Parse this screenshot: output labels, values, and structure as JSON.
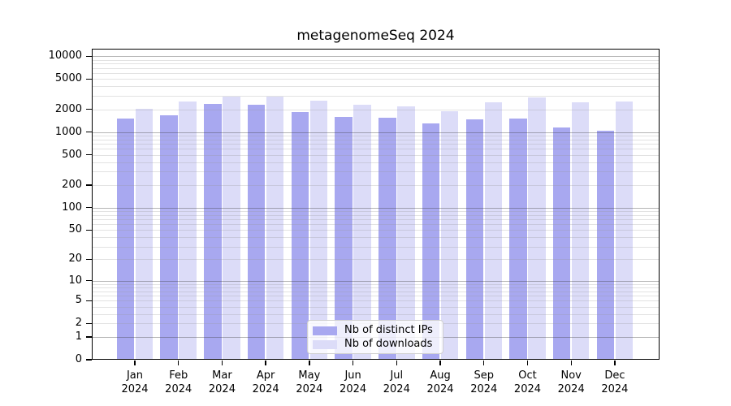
{
  "chart_data": {
    "type": "bar",
    "title": "metagenomeSeq 2024",
    "categories": [
      "Jan",
      "Feb",
      "Mar",
      "Apr",
      "May",
      "Jun",
      "Jul",
      "Aug",
      "Sep",
      "Oct",
      "Nov",
      "Dec"
    ],
    "category_year": "2024",
    "series": [
      {
        "name": "Nb of distinct IPs",
        "color": "#a8a8f0",
        "values": [
          1500,
          1670,
          2380,
          2280,
          1860,
          1570,
          1540,
          1300,
          1470,
          1510,
          1150,
          1050
        ]
      },
      {
        "name": "Nb of downloads",
        "color": "#dcdcf8",
        "values": [
          2050,
          2550,
          2950,
          2950,
          2580,
          2270,
          2170,
          1870,
          2480,
          2900,
          2480,
          2520
        ]
      }
    ],
    "y_scale": "log1p",
    "y_tick_values": [
      0,
      1,
      2,
      5,
      10,
      20,
      50,
      100,
      200,
      500,
      1000,
      2000,
      5000,
      10000
    ],
    "y_tick_labels": [
      "0",
      "1",
      "2",
      "5",
      "10",
      "20",
      "50",
      "100",
      "200",
      "500",
      "1000",
      "2000",
      "5000",
      "10000"
    ],
    "ylim": [
      0,
      10000
    ],
    "grid": "on",
    "legend_position": "bottom-center",
    "frame_color": "#000000",
    "major_gridline_color": "#b5b5b5",
    "minor_gridline_color": "#e4e4e4"
  }
}
